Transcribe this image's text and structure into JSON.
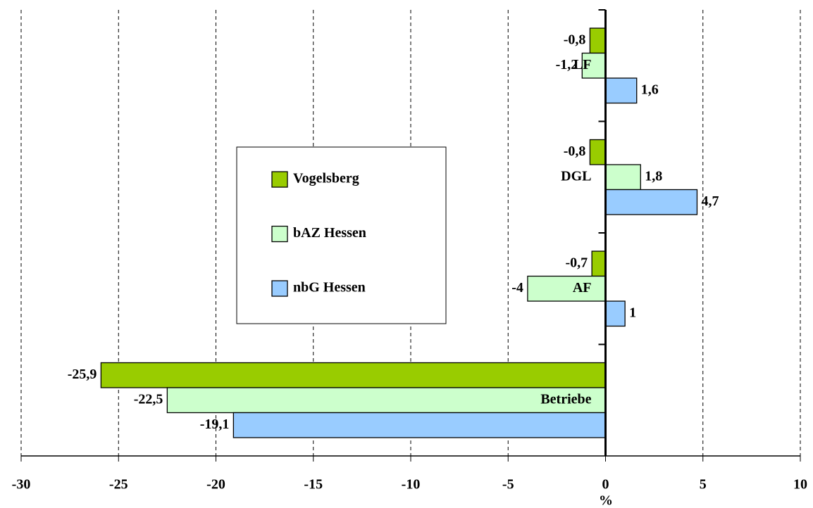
{
  "chart_data": {
    "type": "hbar",
    "categories": [
      "LF",
      "DGL",
      "AF",
      "Betriebe"
    ],
    "series": [
      {
        "name": "Vogelsberg",
        "color": "#99cc00",
        "values": [
          -0.8,
          -0.8,
          -0.7,
          -25.9
        ],
        "value_labels": [
          "-0,8",
          "-0,8",
          "-0,7",
          "-25,9"
        ]
      },
      {
        "name": "bAZ Hessen",
        "color": "#ccffcc",
        "values": [
          -1.2,
          1.8,
          -4,
          -22.5
        ],
        "value_labels": [
          "-1,2",
          "1,8",
          "-4",
          "-22,5"
        ]
      },
      {
        "name": "nbG Hessen",
        "color": "#99ccff",
        "values": [
          1.6,
          4.7,
          1,
          -19.1
        ],
        "value_labels": [
          "1,6",
          "4,7",
          "1",
          "-19,1"
        ]
      }
    ],
    "xlabel": "%",
    "xlim": [
      -30,
      10
    ],
    "xticks": [
      -30,
      -25,
      -20,
      -15,
      -10,
      -5,
      0,
      5,
      10
    ],
    "grid": true
  }
}
